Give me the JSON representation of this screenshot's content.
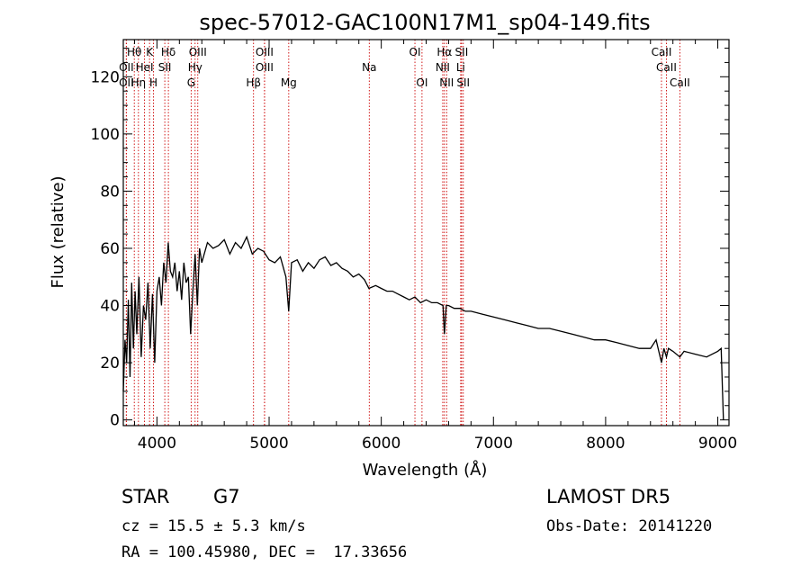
{
  "title": "spec-57012-GAC100N17M1_sp04-149.fits",
  "chart_data": {
    "type": "line",
    "xlabel": "Wavelength (Å)",
    "ylabel": "Flux (relative)",
    "xlim": [
      3700,
      9100
    ],
    "ylim": [
      -2,
      133
    ],
    "xticks": [
      4000,
      5000,
      6000,
      7000,
      8000,
      9000
    ],
    "yticks": [
      0,
      20,
      40,
      60,
      80,
      100,
      120
    ],
    "grid": false,
    "series": [
      {
        "x": [
          3700,
          3715,
          3730,
          3745,
          3760,
          3775,
          3790,
          3805,
          3820,
          3840,
          3860,
          3880,
          3900,
          3920,
          3940,
          3960,
          3980,
          4000,
          4020,
          4040,
          4060,
          4080,
          4100,
          4120,
          4140,
          4160,
          4180,
          4200,
          4220,
          4240,
          4260,
          4280,
          4300,
          4320,
          4340,
          4360,
          4380,
          4400,
          4450,
          4500,
          4550,
          4600,
          4650,
          4700,
          4750,
          4800,
          4850,
          4900,
          4950,
          5000,
          5050,
          5100,
          5150,
          5175,
          5200,
          5250,
          5300,
          5350,
          5400,
          5450,
          5500,
          5550,
          5600,
          5650,
          5700,
          5750,
          5800,
          5850,
          5890,
          5950,
          6000,
          6050,
          6100,
          6150,
          6200,
          6250,
          6300,
          6350,
          6400,
          6450,
          6500,
          6550,
          6563,
          6580,
          6600,
          6650,
          6700,
          6750,
          6800,
          6900,
          7000,
          7100,
          7200,
          7300,
          7400,
          7500,
          7600,
          7700,
          7800,
          7900,
          8000,
          8100,
          8200,
          8300,
          8400,
          8450,
          8498,
          8520,
          8542,
          8560,
          8600,
          8662,
          8700,
          8800,
          8900,
          9000,
          9030,
          9050
        ],
        "values": [
          10,
          28,
          20,
          42,
          15,
          48,
          25,
          45,
          30,
          50,
          22,
          40,
          35,
          48,
          25,
          44,
          20,
          45,
          50,
          40,
          55,
          48,
          62,
          52,
          50,
          55,
          45,
          52,
          42,
          55,
          48,
          50,
          30,
          45,
          58,
          40,
          60,
          55,
          62,
          60,
          61,
          63,
          58,
          62,
          60,
          64,
          58,
          60,
          59,
          56,
          55,
          57,
          50,
          38,
          55,
          56,
          52,
          55,
          53,
          56,
          57,
          54,
          55,
          53,
          52,
          50,
          51,
          49,
          46,
          47,
          46,
          45,
          45,
          44,
          43,
          42,
          43,
          41,
          42,
          41,
          41,
          40,
          30,
          40,
          40,
          39,
          39,
          38,
          38,
          37,
          36,
          35,
          34,
          33,
          32,
          32,
          31,
          30,
          29,
          28,
          28,
          27,
          26,
          25,
          25,
          28,
          20,
          25,
          22,
          25,
          24,
          22,
          24,
          23,
          22,
          24,
          25,
          0
        ]
      }
    ],
    "line_markers": [
      {
        "label": "Hθ",
        "wave": 3798,
        "row": 1
      },
      {
        "label": "K",
        "wave": 3934,
        "row": 1
      },
      {
        "label": "Hδ",
        "wave": 4102,
        "row": 1
      },
      {
        "label": "OIII",
        "wave": 4364,
        "row": 1
      },
      {
        "label": "OIII",
        "wave": 4959,
        "row": 1
      },
      {
        "label": "OI",
        "wave": 6300,
        "row": 1
      },
      {
        "label": "Hα",
        "wave": 6563,
        "row": 1
      },
      {
        "label": "SII",
        "wave": 6716,
        "row": 1
      },
      {
        "label": "CaII",
        "wave": 8498,
        "row": 1
      },
      {
        "label": "OII",
        "wave": 3727,
        "row": 2
      },
      {
        "label": "HeI",
        "wave": 3889,
        "row": 2
      },
      {
        "label": "SII",
        "wave": 4070,
        "row": 2
      },
      {
        "label": "Hγ",
        "wave": 4340,
        "row": 2
      },
      {
        "label": "OIII",
        "wave": 4959,
        "row": 2
      },
      {
        "label": "Na",
        "wave": 5893,
        "row": 2
      },
      {
        "label": "NII",
        "wave": 6548,
        "row": 2
      },
      {
        "label": "Li",
        "wave": 6708,
        "row": 2
      },
      {
        "label": "CaII",
        "wave": 8542,
        "row": 2
      },
      {
        "label": "OII",
        "wave": 3727,
        "row": 3
      },
      {
        "label": "Hη",
        "wave": 3835,
        "row": 3
      },
      {
        "label": "H",
        "wave": 3969,
        "row": 3
      },
      {
        "label": "G",
        "wave": 4305,
        "row": 3
      },
      {
        "label": "Hβ",
        "wave": 4861,
        "row": 3
      },
      {
        "label": "Mg",
        "wave": 5175,
        "row": 3
      },
      {
        "label": "OI",
        "wave": 6363,
        "row": 3
      },
      {
        "label": "NII",
        "wave": 6583,
        "row": 3
      },
      {
        "label": "SII",
        "wave": 6731,
        "row": 3
      },
      {
        "label": "CaII",
        "wave": 8662,
        "row": 3
      }
    ],
    "marker_color": "#cc0000",
    "line_color": "#000000"
  },
  "info": {
    "object": "STAR",
    "subclass": "G7",
    "redshift": "cz = 15.5 ± 5.3 km/s",
    "coords": "RA = 100.45980, DEC =  17.33656",
    "survey": "LAMOST DR5",
    "obs_date": "Obs-Date: 20141220"
  }
}
